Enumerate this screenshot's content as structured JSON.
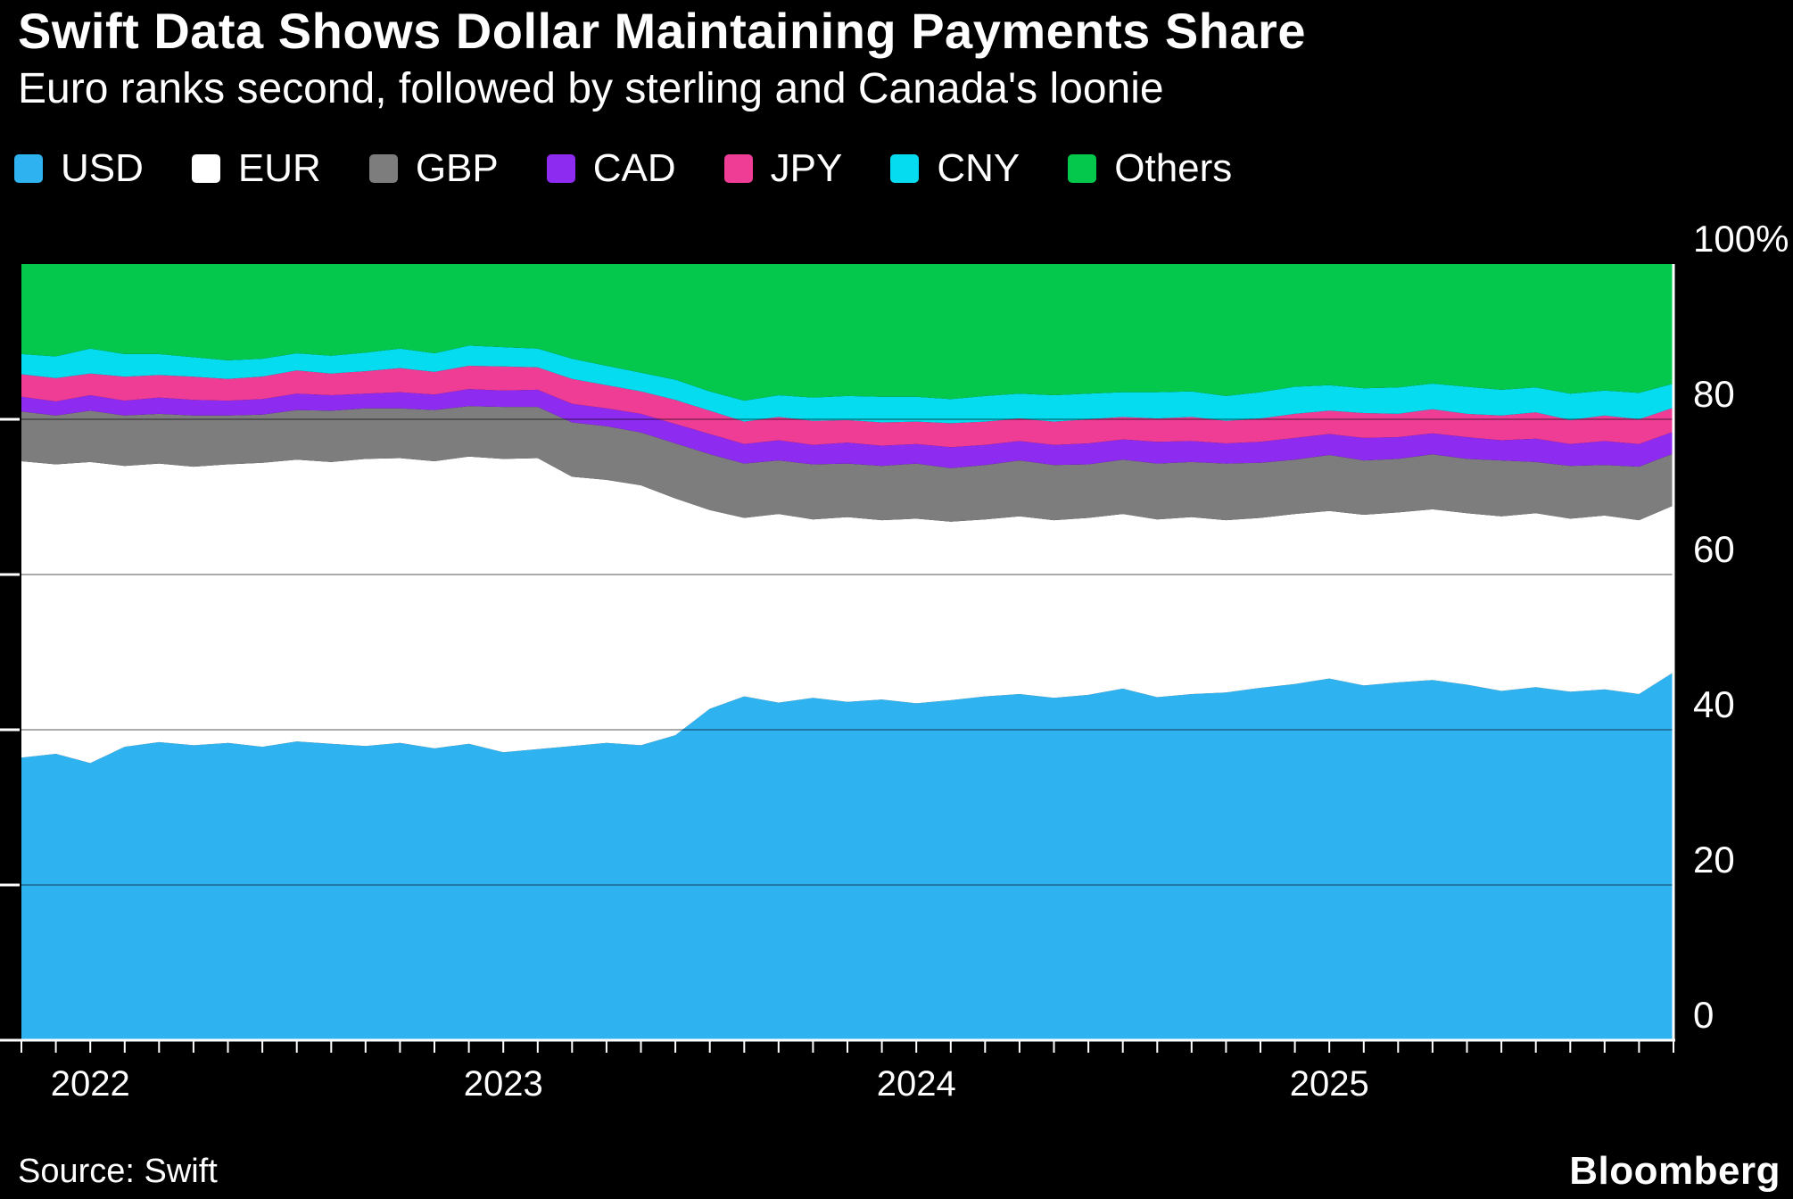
{
  "header": {
    "title": "Swift Data Shows Dollar Maintaining Payments Share",
    "subtitle": "Euro ranks second, followed by sterling and Canada's loonie"
  },
  "footer": {
    "source": "Source: Swift",
    "brand": "Bloomberg"
  },
  "chart_data": {
    "type": "area",
    "stacked": true,
    "unit": "%",
    "ylim": [
      0,
      100
    ],
    "grid": "horizontal",
    "legend_position": "top",
    "background_color": "#000000",
    "axis_color": "#ffffff",
    "gridline_values": [
      20,
      40,
      60,
      80
    ],
    "y_ticks": [
      {
        "label": "100%",
        "value": 100
      },
      {
        "label": "80",
        "value": 80
      },
      {
        "label": "60",
        "value": 60
      },
      {
        "label": "40",
        "value": 40
      },
      {
        "label": "20",
        "value": 20
      },
      {
        "label": "0",
        "value": 0
      }
    ],
    "x_ticks": [
      {
        "label": "2022",
        "index": 2
      },
      {
        "label": "2023",
        "index": 14
      },
      {
        "label": "2024",
        "index": 26
      },
      {
        "label": "2025",
        "index": 38
      }
    ],
    "series": [
      {
        "name": "USD",
        "color": "#2fb3f0",
        "values": [
          36.4,
          36.9,
          35.7,
          37.8,
          38.4,
          38.0,
          38.3,
          37.8,
          38.5,
          38.2,
          37.9,
          38.3,
          37.6,
          38.2,
          37.1,
          37.5,
          37.9,
          38.3,
          38.0,
          39.3,
          42.7,
          44.3,
          43.5,
          44.1,
          43.6,
          43.9,
          43.4,
          43.8,
          44.3,
          44.6,
          44.1,
          44.5,
          45.3,
          44.2,
          44.6,
          44.8,
          45.4,
          45.9,
          46.6,
          45.7,
          46.1,
          46.4,
          45.8,
          45.0,
          45.5,
          44.9,
          45.2,
          44.6,
          47.4
        ]
      },
      {
        "name": "EUR",
        "color": "#ffffff",
        "values": [
          38.2,
          37.3,
          38.8,
          36.2,
          35.9,
          35.9,
          35.9,
          36.6,
          36.3,
          36.3,
          37.0,
          36.7,
          37.0,
          37.0,
          37.8,
          37.5,
          34.7,
          33.9,
          33.5,
          30.5,
          25.6,
          23.0,
          24.3,
          23.0,
          23.8,
          23.1,
          23.8,
          23.0,
          22.8,
          22.9,
          22.9,
          22.8,
          22.5,
          22.9,
          22.8,
          22.2,
          21.9,
          21.9,
          21.6,
          22.0,
          21.9,
          22.0,
          22.1,
          22.5,
          22.4,
          22.3,
          22.4,
          22.4,
          21.5
        ]
      },
      {
        "name": "GBP",
        "color": "#7d7d7d",
        "values": [
          6.4,
          6.3,
          6.6,
          6.5,
          6.4,
          6.6,
          6.3,
          6.2,
          6.4,
          6.6,
          6.5,
          6.4,
          6.6,
          6.5,
          6.7,
          6.6,
          7.0,
          6.9,
          6.8,
          7.1,
          7.2,
          7.0,
          6.9,
          7.1,
          6.9,
          7.0,
          7.1,
          6.9,
          7.0,
          7.2,
          7.1,
          6.9,
          7.0,
          7.2,
          7.1,
          7.3,
          7.1,
          7.0,
          7.2,
          7.0,
          6.9,
          7.1,
          7.0,
          7.2,
          6.6,
          6.8,
          6.5,
          6.9,
          6.7
        ]
      },
      {
        "name": "CAD",
        "color": "#8d2bf0",
        "values": [
          1.9,
          1.8,
          2.0,
          1.9,
          2.1,
          2.0,
          1.9,
          2.0,
          2.1,
          2.0,
          1.9,
          2.1,
          2.0,
          2.2,
          2.1,
          2.2,
          2.4,
          2.3,
          2.4,
          2.5,
          2.6,
          2.5,
          2.6,
          2.5,
          2.7,
          2.6,
          2.5,
          2.7,
          2.6,
          2.5,
          2.6,
          2.7,
          2.6,
          2.8,
          2.7,
          2.6,
          2.7,
          2.8,
          2.7,
          2.9,
          2.8,
          2.7,
          2.8,
          2.6,
          3.0,
          2.8,
          3.1,
          2.9,
          2.8
        ]
      },
      {
        "name": "JPY",
        "color": "#ef3d96",
        "values": [
          2.9,
          3.0,
          2.8,
          3.1,
          2.9,
          3.0,
          2.8,
          2.9,
          3.0,
          2.8,
          2.9,
          3.1,
          2.9,
          3.0,
          3.1,
          2.9,
          3.2,
          3.0,
          2.9,
          3.1,
          3.0,
          2.9,
          3.0,
          3.1,
          2.9,
          3.0,
          2.9,
          3.1,
          3.0,
          2.9,
          3.0,
          3.1,
          2.9,
          3.0,
          3.1,
          2.9,
          3.0,
          3.1,
          3.0,
          3.2,
          3.0,
          3.1,
          3.0,
          3.2,
          3.4,
          3.1,
          3.3,
          3.2,
          3.1
        ]
      },
      {
        "name": "CNY",
        "color": "#06dcf0",
        "values": [
          2.6,
          2.8,
          3.2,
          2.9,
          2.7,
          2.5,
          2.4,
          2.3,
          2.2,
          2.3,
          2.4,
          2.5,
          2.4,
          2.6,
          2.5,
          2.4,
          2.6,
          2.5,
          2.4,
          2.6,
          2.5,
          2.7,
          2.8,
          3.0,
          3.1,
          3.3,
          3.2,
          3.1,
          3.3,
          3.2,
          3.4,
          3.3,
          3.2,
          3.4,
          3.3,
          3.2,
          3.4,
          3.5,
          3.3,
          3.2,
          3.4,
          3.3,
          3.5,
          3.3,
          3.2,
          3.4,
          3.2,
          3.4,
          3.1
        ]
      },
      {
        "name": "Others",
        "color": "#04c84c",
        "values": [
          11.6,
          11.9,
          10.9,
          11.6,
          11.6,
          12.0,
          12.4,
          12.2,
          11.5,
          11.8,
          11.4,
          10.9,
          11.5,
          10.5,
          10.7,
          10.9,
          12.2,
          13.1,
          14.0,
          14.9,
          16.4,
          17.6,
          16.9,
          17.2,
          17.0,
          17.1,
          17.1,
          17.4,
          17.0,
          16.7,
          16.9,
          16.7,
          16.5,
          16.5,
          16.4,
          17.0,
          16.5,
          15.8,
          15.6,
          16.0,
          15.9,
          15.4,
          15.8,
          16.2,
          15.9,
          16.7,
          16.3,
          16.6,
          15.4
        ]
      }
    ]
  }
}
